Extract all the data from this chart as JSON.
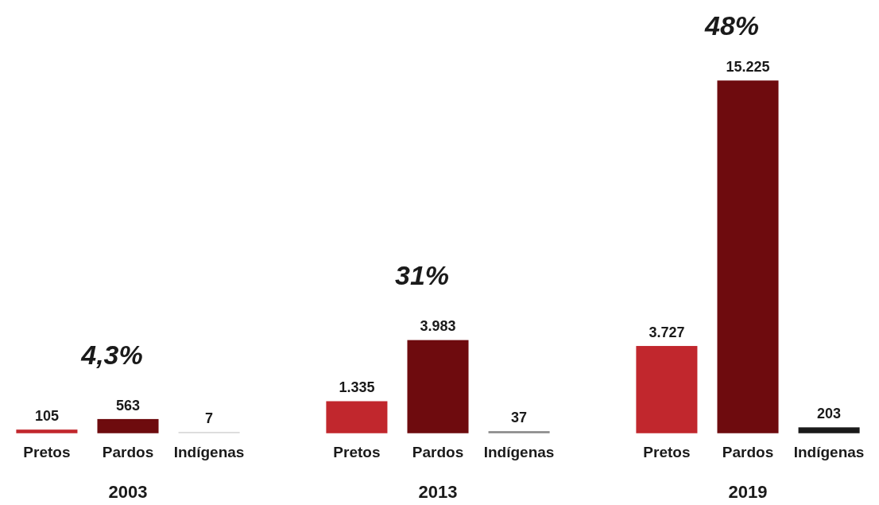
{
  "chart_data": [
    {
      "type": "bar",
      "categories": [
        "Pretos",
        "Pardos",
        "Indígenas"
      ],
      "values": [
        105,
        563,
        7
      ],
      "colors": [
        "#c1272d",
        "#6e0b0e",
        "#d9d9d9"
      ],
      "value_labels": [
        "105",
        "563",
        "7"
      ],
      "xlabel": "2003",
      "annotations": [
        "4,3%"
      ]
    },
    {
      "type": "bar",
      "categories": [
        "Pretos",
        "Pardos",
        "Indígenas"
      ],
      "values": [
        1335,
        3983,
        37
      ],
      "colors": [
        "#c1272d",
        "#6e0b0e",
        "#888888"
      ],
      "value_labels": [
        "1.335",
        "3.983",
        "37"
      ],
      "xlabel": "2013",
      "annotations": [
        "31%"
      ]
    },
    {
      "type": "bar",
      "categories": [
        "Pretos",
        "Pardos",
        "Indígenas"
      ],
      "values": [
        3727,
        15225,
        203
      ],
      "colors": [
        "#c1272d",
        "#6e0b0e",
        "#1a1a1a"
      ],
      "value_labels": [
        "3.727",
        "15.225",
        "203"
      ],
      "xlabel": "2019",
      "annotations": [
        "48%"
      ]
    }
  ]
}
